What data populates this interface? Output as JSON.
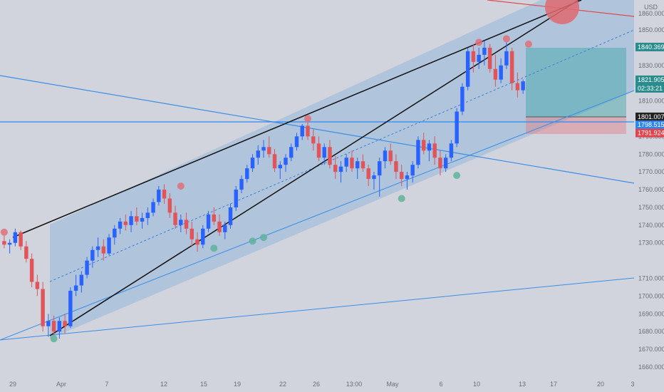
{
  "chart_data": {
    "type": "candlestick",
    "currency": "USD",
    "ylim": [
      1655,
      1860
    ],
    "y_ticks": [
      1850,
      1830,
      1810,
      1790,
      1780,
      1770,
      1760,
      1750,
      1740,
      1730,
      1710,
      1700,
      1690,
      1680,
      1670,
      1660
    ],
    "x_ticks": [
      "29",
      "Apr",
      "7",
      "12",
      "15",
      "19",
      "22",
      "26",
      "13:00",
      "May",
      "6",
      "10",
      "13",
      "17",
      "20",
      "3"
    ],
    "price_labels": {
      "top_cut": "1860.000",
      "target": "1840.369",
      "current": "1821.905",
      "countdown": "02:33:21",
      "entry": "1801.007",
      "support": "1798.515",
      "stop": "1791.924"
    },
    "ohlc": [
      [
        1731,
        1734,
        1727,
        1729
      ],
      [
        1729,
        1732,
        1724,
        1730
      ],
      [
        1730,
        1738,
        1728,
        1736
      ],
      [
        1736,
        1737,
        1726,
        1728
      ],
      [
        1728,
        1731,
        1719,
        1721
      ],
      [
        1721,
        1724,
        1705,
        1708
      ],
      [
        1708,
        1712,
        1700,
        1704
      ],
      [
        1704,
        1708,
        1680,
        1683
      ],
      [
        1683,
        1690,
        1677,
        1686
      ],
      [
        1686,
        1689,
        1678,
        1680
      ],
      [
        1680,
        1688,
        1676,
        1686
      ],
      [
        1686,
        1690,
        1679,
        1683
      ],
      [
        1683,
        1705,
        1682,
        1703
      ],
      [
        1703,
        1712,
        1700,
        1706
      ],
      [
        1706,
        1714,
        1702,
        1712
      ],
      [
        1712,
        1722,
        1710,
        1720
      ],
      [
        1720,
        1728,
        1716,
        1726
      ],
      [
        1726,
        1733,
        1722,
        1728
      ],
      [
        1728,
        1732,
        1720,
        1724
      ],
      [
        1724,
        1735,
        1723,
        1733
      ],
      [
        1733,
        1740,
        1729,
        1738
      ],
      [
        1738,
        1744,
        1735,
        1742
      ],
      [
        1742,
        1746,
        1737,
        1740
      ],
      [
        1740,
        1748,
        1736,
        1745
      ],
      [
        1745,
        1750,
        1740,
        1742
      ],
      [
        1742,
        1747,
        1738,
        1744
      ],
      [
        1744,
        1750,
        1740,
        1747
      ],
      [
        1747,
        1755,
        1745,
        1753
      ],
      [
        1753,
        1762,
        1751,
        1760
      ],
      [
        1760,
        1763,
        1752,
        1755
      ],
      [
        1755,
        1758,
        1744,
        1747
      ],
      [
        1747,
        1751,
        1738,
        1740
      ],
      [
        1740,
        1746,
        1736,
        1743
      ],
      [
        1743,
        1747,
        1735,
        1738
      ],
      [
        1738,
        1742,
        1728,
        1732
      ],
      [
        1732,
        1736,
        1725,
        1729
      ],
      [
        1729,
        1740,
        1727,
        1738
      ],
      [
        1738,
        1748,
        1736,
        1746
      ],
      [
        1746,
        1750,
        1740,
        1742
      ],
      [
        1742,
        1746,
        1734,
        1736
      ],
      [
        1736,
        1742,
        1732,
        1740
      ],
      [
        1740,
        1752,
        1738,
        1750
      ],
      [
        1750,
        1762,
        1748,
        1760
      ],
      [
        1760,
        1768,
        1758,
        1766
      ],
      [
        1766,
        1774,
        1764,
        1772
      ],
      [
        1772,
        1780,
        1770,
        1778
      ],
      [
        1778,
        1785,
        1774,
        1782
      ],
      [
        1782,
        1788,
        1778,
        1784
      ],
      [
        1784,
        1790,
        1778,
        1780
      ],
      [
        1780,
        1783,
        1770,
        1772
      ],
      [
        1772,
        1776,
        1766,
        1774
      ],
      [
        1774,
        1780,
        1770,
        1778
      ],
      [
        1778,
        1786,
        1776,
        1784
      ],
      [
        1784,
        1792,
        1782,
        1790
      ],
      [
        1790,
        1797,
        1788,
        1796
      ],
      [
        1796,
        1800,
        1788,
        1790
      ],
      [
        1790,
        1794,
        1782,
        1786
      ],
      [
        1786,
        1790,
        1776,
        1778
      ],
      [
        1778,
        1786,
        1774,
        1784
      ],
      [
        1784,
        1788,
        1772,
        1774
      ],
      [
        1774,
        1779,
        1766,
        1770
      ],
      [
        1770,
        1776,
        1764,
        1773
      ],
      [
        1773,
        1780,
        1770,
        1778
      ],
      [
        1778,
        1782,
        1770,
        1772
      ],
      [
        1772,
        1778,
        1766,
        1776
      ],
      [
        1776,
        1780,
        1770,
        1772
      ],
      [
        1772,
        1774,
        1762,
        1766
      ],
      [
        1766,
        1770,
        1760,
        1768
      ],
      [
        1768,
        1778,
        1756,
        1776
      ],
      [
        1776,
        1784,
        1772,
        1782
      ],
      [
        1782,
        1786,
        1774,
        1776
      ],
      [
        1776,
        1780,
        1766,
        1770
      ],
      [
        1770,
        1774,
        1762,
        1766
      ],
      [
        1766,
        1770,
        1760,
        1768
      ],
      [
        1768,
        1776,
        1764,
        1774
      ],
      [
        1774,
        1790,
        1772,
        1788
      ],
      [
        1788,
        1792,
        1780,
        1782
      ],
      [
        1782,
        1788,
        1776,
        1786
      ],
      [
        1786,
        1790,
        1774,
        1778
      ],
      [
        1778,
        1782,
        1768,
        1772
      ],
      [
        1772,
        1780,
        1770,
        1778
      ],
      [
        1778,
        1788,
        1776,
        1786
      ],
      [
        1786,
        1806,
        1784,
        1804
      ],
      [
        1804,
        1820,
        1802,
        1818
      ],
      [
        1818,
        1840,
        1816,
        1838
      ],
      [
        1838,
        1842,
        1826,
        1832
      ],
      [
        1832,
        1840,
        1828,
        1836
      ],
      [
        1836,
        1844,
        1830,
        1840
      ],
      [
        1840,
        1842,
        1826,
        1828
      ],
      [
        1828,
        1836,
        1818,
        1822
      ],
      [
        1822,
        1834,
        1820,
        1830
      ],
      [
        1830,
        1843,
        1828,
        1838
      ],
      [
        1838,
        1840,
        1816,
        1820
      ],
      [
        1820,
        1826,
        1812,
        1816
      ],
      [
        1816,
        1822,
        1814,
        1821
      ]
    ],
    "swing_highs": [
      [
        0,
        1736
      ],
      [
        32,
        1762
      ],
      [
        55,
        1800
      ],
      [
        86,
        1843
      ],
      [
        91,
        1845
      ],
      [
        95,
        1842
      ]
    ],
    "swing_lows": [
      [
        9,
        1676
      ],
      [
        38,
        1727
      ],
      [
        45,
        1731
      ],
      [
        47,
        1733
      ],
      [
        72,
        1755
      ],
      [
        82,
        1768
      ]
    ]
  }
}
